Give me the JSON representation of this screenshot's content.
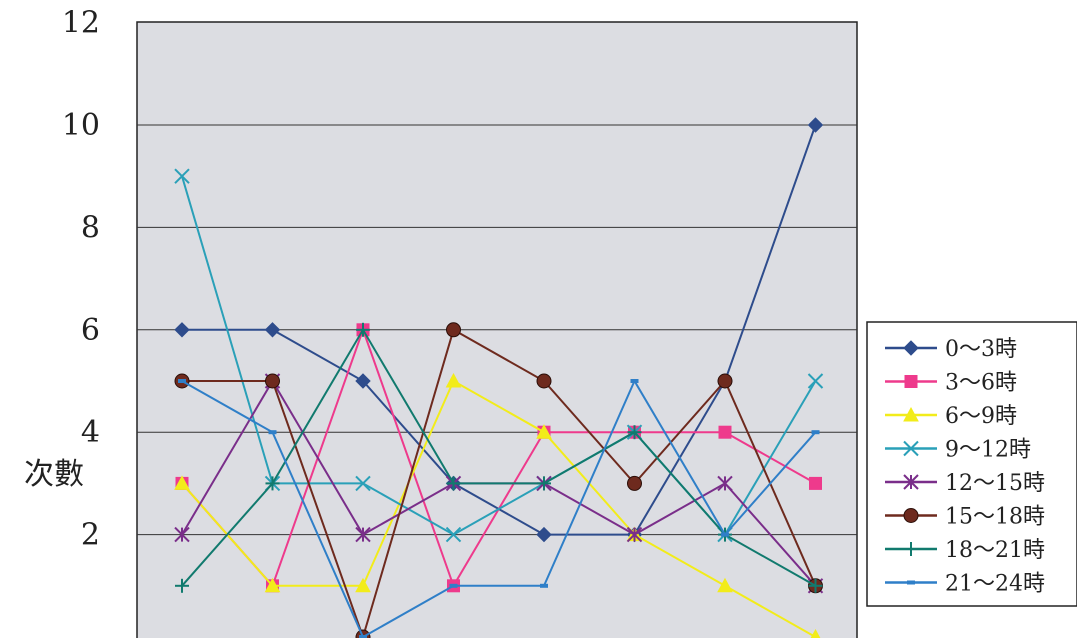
{
  "chart_data": {
    "type": "line",
    "title": "",
    "xlabel": "",
    "ylabel": "次數",
    "ylim": [
      0,
      12
    ],
    "yticks": [
      12,
      10,
      8,
      6,
      4,
      2
    ],
    "grid": true,
    "legend_position": "right",
    "plot_background": "#dcdde2",
    "x": [
      1,
      2,
      3,
      4,
      5,
      6,
      7,
      8
    ],
    "series": [
      {
        "name": "0～3時",
        "color": "#2e4c8c",
        "marker": "diamond",
        "values": [
          6,
          6,
          5,
          3,
          2,
          2,
          5,
          10
        ]
      },
      {
        "name": "3～6時",
        "color": "#ee3a8c",
        "marker": "square",
        "values": [
          3,
          1,
          6,
          1,
          4,
          4,
          4,
          3
        ]
      },
      {
        "name": "6～9時",
        "color": "#f2ec1a",
        "marker": "triangle",
        "values": [
          3,
          1,
          1,
          5,
          4,
          2,
          1,
          0
        ]
      },
      {
        "name": "9～12時",
        "color": "#2aa0b8",
        "marker": "x",
        "values": [
          9,
          3,
          3,
          2,
          3,
          4,
          2,
          5
        ]
      },
      {
        "name": "12～15時",
        "color": "#7a2e8a",
        "marker": "star",
        "values": [
          2,
          5,
          2,
          3,
          3,
          2,
          3,
          1
        ]
      },
      {
        "name": "15～18時",
        "color": "#6e2a1e",
        "marker": "circle",
        "values": [
          5,
          5,
          0,
          6,
          5,
          3,
          5,
          1
        ]
      },
      {
        "name": "18～21時",
        "color": "#117a6e",
        "marker": "plus",
        "values": [
          1,
          3,
          6,
          3,
          3,
          4,
          2,
          1
        ]
      },
      {
        "name": "21～24時",
        "color": "#2f7fc8",
        "marker": "dash",
        "values": [
          5,
          4,
          0,
          1,
          1,
          5,
          2,
          4
        ]
      }
    ]
  }
}
